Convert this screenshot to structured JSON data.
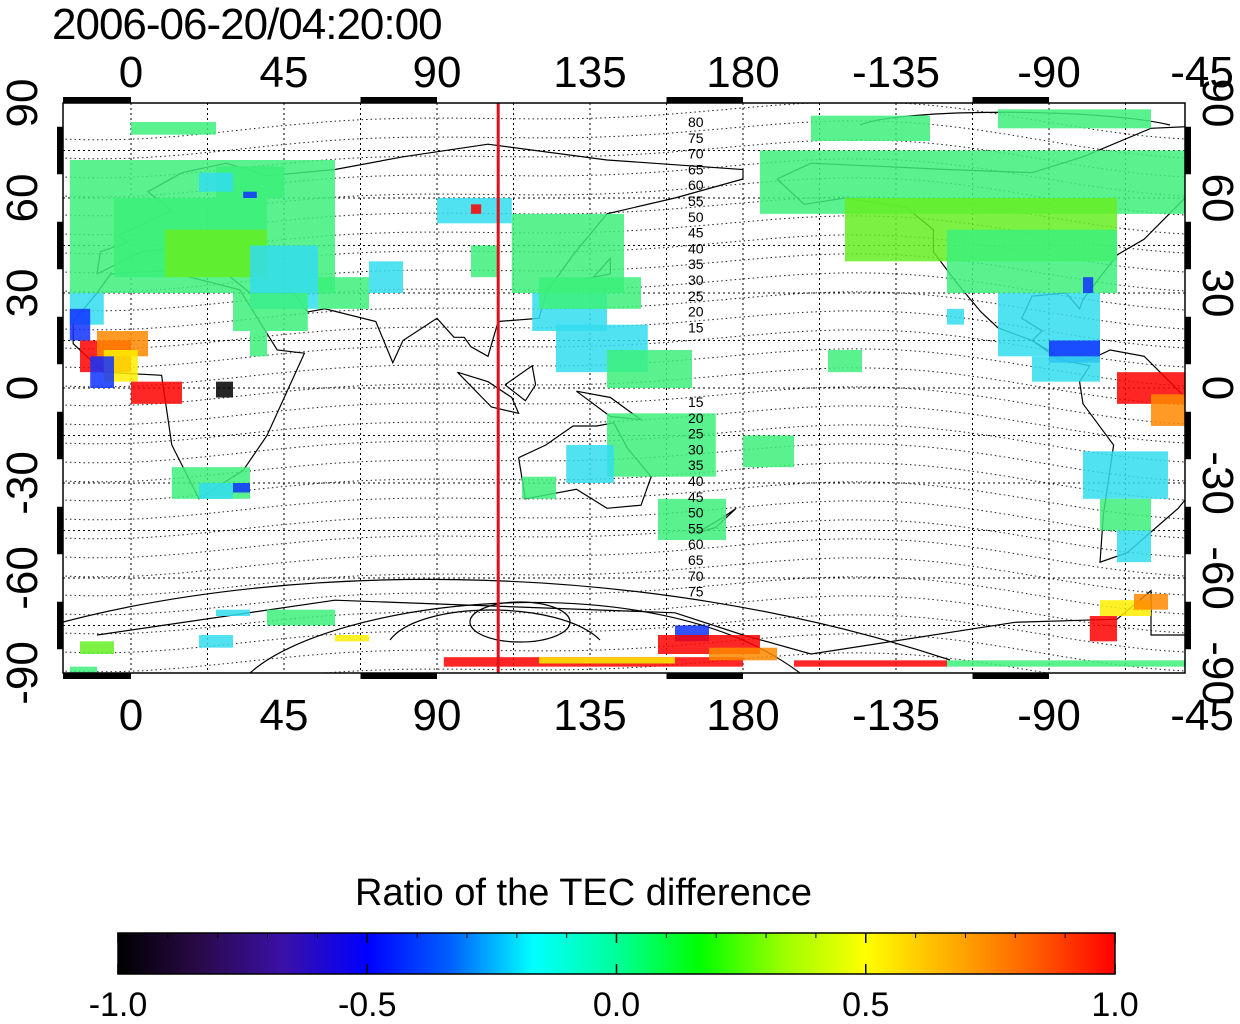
{
  "title": "2006-06-20/04:20:00",
  "axes": {
    "lon_ticks": [
      "0",
      "45",
      "90",
      "135",
      "180",
      "-135",
      "-90",
      "-45"
    ],
    "lat_ticks_left": [
      "90",
      "60",
      "30",
      "0",
      "-30",
      "-60",
      "-90"
    ],
    "lat_ticks_right": [
      "90",
      "60",
      "30",
      "0",
      "-30",
      "-60",
      "-90"
    ]
  },
  "colorbar": {
    "title": "Ratio of the TEC difference",
    "ticks": [
      "-1.0",
      "-0.5",
      "0.0",
      "0.5",
      "1.0"
    ],
    "range": [
      -1.0,
      1.0
    ],
    "stops": [
      "#000000",
      "#2a0a4a",
      "#3a10a8",
      "#0000ff",
      "#0060ff",
      "#00ffff",
      "#00ff9a",
      "#00ff00",
      "#9aff00",
      "#ffff00",
      "#ffb000",
      "#ff6000",
      "#ff0000"
    ]
  },
  "map": {
    "lon_range": [
      -20,
      310
    ],
    "lat_range": [
      -90,
      90
    ],
    "highlight_longitude": 108,
    "highlight_color": "#e0101a",
    "contour_labels_north": [
      "80",
      "75",
      "70",
      "65",
      "60",
      "55",
      "50",
      "45",
      "40",
      "35",
      "30",
      "25",
      "20",
      "15"
    ],
    "contour_labels_south": [
      "15",
      "20",
      "25",
      "30",
      "35",
      "40",
      "45",
      "50",
      "55",
      "60",
      "65",
      "70",
      "75"
    ],
    "colors": {
      "green": "#3cf07a",
      "lime": "#66ee22",
      "cyan": "#33ddee",
      "blue": "#1133ff",
      "red": "#ff0000",
      "orange": "#ff8800",
      "yellow": "#ffee00",
      "black": "#000000",
      "purple": "#3300aa"
    }
  }
}
